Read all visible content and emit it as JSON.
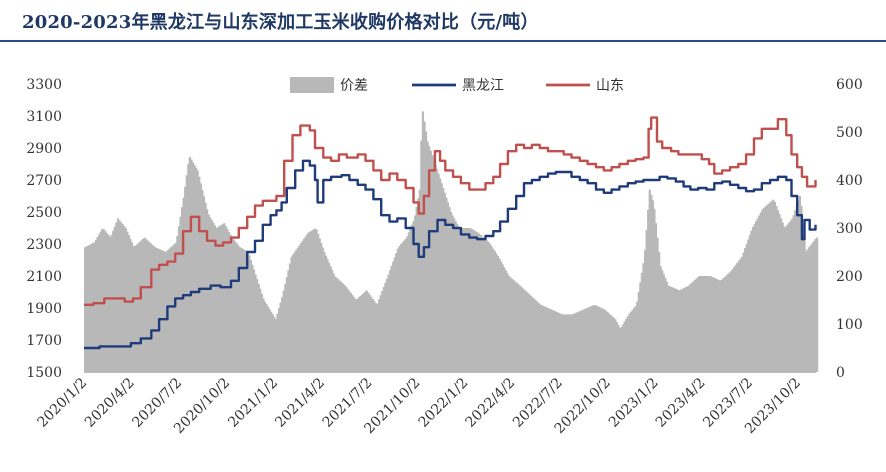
{
  "title": "2020-2023年黑龙江与山东深加工玉米收购价格对比（元/吨）",
  "chart_data": {
    "type": "line",
    "title": "2020-2023年黑龙江与山东深加工玉米收购价格对比（元/吨）",
    "legend": [
      "价差",
      "黑龙江",
      "山东"
    ],
    "legend_position": "top",
    "grid": false,
    "x_tick_labels": [
      "2020/1/2",
      "2020/4/2",
      "2020/7/2",
      "2020/10/2",
      "2021/1/2",
      "2021/4/2",
      "2021/7/2",
      "2021/10/2",
      "2022/1/2",
      "2022/4/2",
      "2022/7/2",
      "2022/10/2",
      "2023/1/2",
      "2023/4/2",
      "2023/7/2",
      "2023/10/2"
    ],
    "y_left_ticks": [
      "1500",
      "1700",
      "1900",
      "2100",
      "2300",
      "2500",
      "2700",
      "2900",
      "3100",
      "3300"
    ],
    "y_right_ticks": [
      "0",
      "100",
      "200",
      "300",
      "400",
      "500",
      "600"
    ],
    "ylim_left": [
      1500,
      3300
    ],
    "ylim_right": [
      0,
      600
    ],
    "colors": {
      "价差": "#b8b8b8",
      "黑龙江": "#1f3b7a",
      "山东": "#c0504d"
    },
    "series": [
      {
        "name": "黑龙江",
        "axis": "left",
        "type": "line",
        "points": [
          [
            "2020/1/2",
            1650
          ],
          [
            "2020/2/1",
            1660
          ],
          [
            "2020/3/1",
            1660
          ],
          [
            "2020/4/1",
            1680
          ],
          [
            "2020/4/20",
            1710
          ],
          [
            "2020/5/10",
            1760
          ],
          [
            "2020/5/25",
            1830
          ],
          [
            "2020/6/10",
            1910
          ],
          [
            "2020/6/25",
            1960
          ],
          [
            "2020/7/10",
            1980
          ],
          [
            "2020/7/25",
            2000
          ],
          [
            "2020/8/10",
            2020
          ],
          [
            "2020/9/1",
            2040
          ],
          [
            "2020/9/20",
            2030
          ],
          [
            "2020/10/10",
            2070
          ],
          [
            "2020/10/25",
            2150
          ],
          [
            "2020/11/10",
            2250
          ],
          [
            "2020/11/25",
            2320
          ],
          [
            "2020/12/10",
            2420
          ],
          [
            "2020/12/25",
            2480
          ],
          [
            "2021/1/5",
            2510
          ],
          [
            "2021/1/15",
            2560
          ],
          [
            "2021/1/25",
            2650
          ],
          [
            "2021/2/10",
            2760
          ],
          [
            "2021/2/25",
            2820
          ],
          [
            "2021/3/10",
            2790
          ],
          [
            "2021/3/20",
            2700
          ],
          [
            "2021/3/25",
            2560
          ],
          [
            "2021/4/5",
            2700
          ],
          [
            "2021/4/20",
            2720
          ],
          [
            "2021/5/10",
            2730
          ],
          [
            "2021/5/25",
            2700
          ],
          [
            "2021/6/10",
            2670
          ],
          [
            "2021/6/25",
            2640
          ],
          [
            "2021/7/10",
            2580
          ],
          [
            "2021/7/25",
            2480
          ],
          [
            "2021/8/10",
            2440
          ],
          [
            "2021/8/25",
            2460
          ],
          [
            "2021/9/10",
            2400
          ],
          [
            "2021/9/25",
            2300
          ],
          [
            "2021/10/5",
            2220
          ],
          [
            "2021/10/15",
            2280
          ],
          [
            "2021/10/25",
            2380
          ],
          [
            "2021/11/10",
            2450
          ],
          [
            "2021/11/25",
            2420
          ],
          [
            "2021/12/10",
            2400
          ],
          [
            "2021/12/25",
            2360
          ],
          [
            "2022/1/10",
            2340
          ],
          [
            "2022/1/25",
            2330
          ],
          [
            "2022/2/10",
            2350
          ],
          [
            "2022/2/25",
            2380
          ],
          [
            "2022/3/10",
            2440
          ],
          [
            "2022/3/25",
            2520
          ],
          [
            "2022/4/10",
            2600
          ],
          [
            "2022/4/25",
            2680
          ],
          [
            "2022/5/10",
            2700
          ],
          [
            "2022/5/25",
            2720
          ],
          [
            "2022/6/10",
            2740
          ],
          [
            "2022/6/25",
            2750
          ],
          [
            "2022/7/10",
            2750
          ],
          [
            "2022/7/25",
            2720
          ],
          [
            "2022/8/10",
            2700
          ],
          [
            "2022/8/25",
            2680
          ],
          [
            "2022/9/10",
            2640
          ],
          [
            "2022/9/25",
            2620
          ],
          [
            "2022/10/10",
            2640
          ],
          [
            "2022/10/25",
            2660
          ],
          [
            "2022/11/10",
            2680
          ],
          [
            "2022/11/25",
            2690
          ],
          [
            "2022/12/10",
            2700
          ],
          [
            "2022/12/25",
            2700
          ],
          [
            "2023/1/10",
            2720
          ],
          [
            "2023/1/25",
            2710
          ],
          [
            "2023/2/10",
            2690
          ],
          [
            "2023/2/25",
            2660
          ],
          [
            "2023/3/10",
            2640
          ],
          [
            "2023/3/25",
            2650
          ],
          [
            "2023/4/10",
            2640
          ],
          [
            "2023/4/25",
            2680
          ],
          [
            "2023/5/10",
            2690
          ],
          [
            "2023/5/25",
            2670
          ],
          [
            "2023/6/10",
            2650
          ],
          [
            "2023/6/25",
            2630
          ],
          [
            "2023/7/10",
            2640
          ],
          [
            "2023/7/25",
            2680
          ],
          [
            "2023/8/10",
            2700
          ],
          [
            "2023/8/25",
            2720
          ],
          [
            "2023/9/10",
            2700
          ],
          [
            "2023/9/20",
            2600
          ],
          [
            "2023/10/1",
            2480
          ],
          [
            "2023/10/10",
            2330
          ],
          [
            "2023/10/15",
            2450
          ],
          [
            "2023/10/25",
            2390
          ],
          [
            "2023/11/5",
            2420
          ]
        ]
      },
      {
        "name": "山东",
        "axis": "left",
        "type": "line",
        "points": [
          [
            "2020/1/2",
            1920
          ],
          [
            "2020/1/20",
            1930
          ],
          [
            "2020/2/10",
            1960
          ],
          [
            "2020/3/1",
            1960
          ],
          [
            "2020/3/20",
            1940
          ],
          [
            "2020/4/5",
            1960
          ],
          [
            "2020/4/20",
            2030
          ],
          [
            "2020/5/10",
            2140
          ],
          [
            "2020/5/25",
            2170
          ],
          [
            "2020/6/10",
            2190
          ],
          [
            "2020/6/25",
            2240
          ],
          [
            "2020/7/10",
            2380
          ],
          [
            "2020/7/25",
            2470
          ],
          [
            "2020/8/10",
            2380
          ],
          [
            "2020/8/25",
            2320
          ],
          [
            "2020/9/10",
            2290
          ],
          [
            "2020/9/25",
            2310
          ],
          [
            "2020/10/10",
            2340
          ],
          [
            "2020/10/25",
            2400
          ],
          [
            "2020/11/10",
            2470
          ],
          [
            "2020/11/25",
            2540
          ],
          [
            "2020/12/10",
            2570
          ],
          [
            "2021/1/5",
            2600
          ],
          [
            "2021/1/20",
            2820
          ],
          [
            "2021/2/5",
            2980
          ],
          [
            "2021/2/20",
            3040
          ],
          [
            "2021/3/10",
            3010
          ],
          [
            "2021/3/20",
            2900
          ],
          [
            "2021/4/5",
            2840
          ],
          [
            "2021/4/20",
            2820
          ],
          [
            "2021/5/5",
            2860
          ],
          [
            "2021/5/20",
            2840
          ],
          [
            "2021/6/10",
            2860
          ],
          [
            "2021/6/25",
            2820
          ],
          [
            "2021/7/10",
            2760
          ],
          [
            "2021/7/25",
            2700
          ],
          [
            "2021/8/10",
            2740
          ],
          [
            "2021/8/25",
            2700
          ],
          [
            "2021/9/10",
            2650
          ],
          [
            "2021/9/25",
            2560
          ],
          [
            "2021/10/5",
            2490
          ],
          [
            "2021/10/15",
            2600
          ],
          [
            "2021/10/25",
            2760
          ],
          [
            "2021/11/5",
            2880
          ],
          [
            "2021/11/15",
            2820
          ],
          [
            "2021/11/25",
            2760
          ],
          [
            "2021/12/10",
            2720
          ],
          [
            "2021/12/25",
            2680
          ],
          [
            "2022/1/10",
            2640
          ],
          [
            "2022/1/25",
            2640
          ],
          [
            "2022/2/10",
            2680
          ],
          [
            "2022/2/25",
            2720
          ],
          [
            "2022/3/10",
            2800
          ],
          [
            "2022/3/25",
            2880
          ],
          [
            "2022/4/10",
            2920
          ],
          [
            "2022/4/25",
            2900
          ],
          [
            "2022/5/10",
            2920
          ],
          [
            "2022/5/25",
            2900
          ],
          [
            "2022/6/10",
            2880
          ],
          [
            "2022/6/25",
            2880
          ],
          [
            "2022/7/10",
            2860
          ],
          [
            "2022/7/25",
            2840
          ],
          [
            "2022/8/10",
            2820
          ],
          [
            "2022/8/25",
            2800
          ],
          [
            "2022/9/10",
            2780
          ],
          [
            "2022/9/25",
            2760
          ],
          [
            "2022/10/10",
            2780
          ],
          [
            "2022/10/25",
            2800
          ],
          [
            "2022/11/10",
            2820
          ],
          [
            "2022/11/25",
            2830
          ],
          [
            "2022/12/10",
            2840
          ],
          [
            "2022/12/20",
            3020
          ],
          [
            "2022/12/25",
            3090
          ],
          [
            "2023/1/5",
            2940
          ],
          [
            "2023/1/15",
            2900
          ],
          [
            "2023/2/1",
            2880
          ],
          [
            "2023/2/15",
            2860
          ],
          [
            "2023/3/1",
            2860
          ],
          [
            "2023/3/15",
            2860
          ],
          [
            "2023/4/1",
            2830
          ],
          [
            "2023/4/15",
            2800
          ],
          [
            "2023/4/25",
            2740
          ],
          [
            "2023/5/10",
            2760
          ],
          [
            "2023/5/25",
            2780
          ],
          [
            "2023/6/10",
            2800
          ],
          [
            "2023/6/25",
            2860
          ],
          [
            "2023/7/10",
            2960
          ],
          [
            "2023/7/25",
            3020
          ],
          [
            "2023/8/10",
            3020
          ],
          [
            "2023/8/25",
            3080
          ],
          [
            "2023/9/10",
            2980
          ],
          [
            "2023/9/20",
            2860
          ],
          [
            "2023/10/1",
            2780
          ],
          [
            "2023/10/10",
            2720
          ],
          [
            "2023/10/20",
            2660
          ],
          [
            "2023/11/5",
            2700
          ]
        ]
      },
      {
        "name": "价差",
        "axis": "right",
        "type": "bar",
        "points": [
          [
            "2020/1/2",
            260
          ],
          [
            "2020/1/20",
            270
          ],
          [
            "2020/2/5",
            300
          ],
          [
            "2020/2/20",
            280
          ],
          [
            "2020/3/5",
            320
          ],
          [
            "2020/3/20",
            300
          ],
          [
            "2020/4/5",
            260
          ],
          [
            "2020/4/25",
            280
          ],
          [
            "2020/5/15",
            260
          ],
          [
            "2020/6/5",
            250
          ],
          [
            "2020/6/25",
            270
          ],
          [
            "2020/7/10",
            370
          ],
          [
            "2020/7/20",
            450
          ],
          [
            "2020/8/5",
            420
          ],
          [
            "2020/8/25",
            330
          ],
          [
            "2020/9/10",
            300
          ],
          [
            "2020/9/25",
            310
          ],
          [
            "2020/10/10",
            280
          ],
          [
            "2020/10/25",
            260
          ],
          [
            "2020/11/10",
            250
          ],
          [
            "2020/11/25",
            200
          ],
          [
            "2020/12/10",
            150
          ],
          [
            "2021/1/2",
            110
          ],
          [
            "2021/1/15",
            160
          ],
          [
            "2021/2/1",
            240
          ],
          [
            "2021/2/20",
            270
          ],
          [
            "2021/3/5",
            290
          ],
          [
            "2021/3/20",
            300
          ],
          [
            "2021/4/5",
            250
          ],
          [
            "2021/4/25",
            200
          ],
          [
            "2021/5/15",
            180
          ],
          [
            "2021/6/5",
            150
          ],
          [
            "2021/6/25",
            170
          ],
          [
            "2021/7/15",
            140
          ],
          [
            "2021/8/5",
            200
          ],
          [
            "2021/8/25",
            260
          ],
          [
            "2021/9/10",
            280
          ],
          [
            "2021/9/25",
            320
          ],
          [
            "2021/10/5",
            380
          ],
          [
            "2021/10/10",
            550
          ],
          [
            "2021/10/20",
            480
          ],
          [
            "2021/11/5",
            430
          ],
          [
            "2021/11/20",
            380
          ],
          [
            "2021/12/5",
            330
          ],
          [
            "2021/12/20",
            300
          ],
          [
            "2022/1/10",
            300
          ],
          [
            "2022/1/25",
            290
          ],
          [
            "2022/2/15",
            270
          ],
          [
            "2022/3/5",
            240
          ],
          [
            "2022/3/25",
            200
          ],
          [
            "2022/4/15",
            180
          ],
          [
            "2022/5/5",
            160
          ],
          [
            "2022/5/25",
            140
          ],
          [
            "2022/6/15",
            130
          ],
          [
            "2022/7/5",
            120
          ],
          [
            "2022/7/25",
            120
          ],
          [
            "2022/8/15",
            130
          ],
          [
            "2022/9/5",
            140
          ],
          [
            "2022/9/25",
            130
          ],
          [
            "2022/10/15",
            110
          ],
          [
            "2022/10/25",
            90
          ],
          [
            "2022/11/10",
            120
          ],
          [
            "2022/11/25",
            140
          ],
          [
            "2022/12/10",
            240
          ],
          [
            "2022/12/20",
            380
          ],
          [
            "2022/12/28",
            350
          ],
          [
            "2023/1/10",
            220
          ],
          [
            "2023/1/25",
            180
          ],
          [
            "2023/2/15",
            170
          ],
          [
            "2023/3/5",
            180
          ],
          [
            "2023/3/25",
            200
          ],
          [
            "2023/4/15",
            200
          ],
          [
            "2023/5/5",
            190
          ],
          [
            "2023/5/25",
            210
          ],
          [
            "2023/6/15",
            240
          ],
          [
            "2023/7/5",
            300
          ],
          [
            "2023/7/25",
            340
          ],
          [
            "2023/8/15",
            360
          ],
          [
            "2023/9/5",
            300
          ],
          [
            "2023/9/20",
            320
          ],
          [
            "2023/10/5",
            370
          ],
          [
            "2023/10/15",
            250
          ],
          [
            "2023/11/5",
            280
          ]
        ]
      }
    ]
  }
}
